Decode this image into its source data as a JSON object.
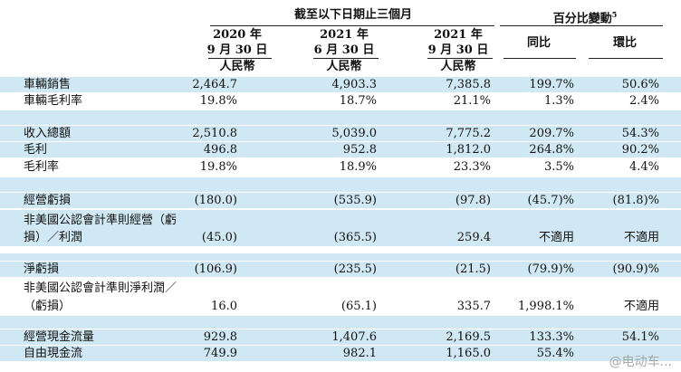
{
  "header": {
    "group_title": "截至以下日期止三個月",
    "pct_title": "百分比變動",
    "pct_footnote": "5",
    "columns": [
      {
        "line1": "2020 年",
        "line2": "9 月 30 日",
        "unit": "人民幣"
      },
      {
        "line1": "2021 年",
        "line2": "6 月 30 日",
        "unit": "人民幣"
      },
      {
        "line1": "2021 年",
        "line2": "9 月 30 日",
        "unit": "人民幣"
      },
      {
        "line1": "同比"
      },
      {
        "line1": "環比"
      }
    ]
  },
  "rows": [
    {
      "label": "車輛銷售",
      "values": [
        "2,464.7",
        "4,903.3",
        "7,385.8",
        "199.7%",
        "50.6%"
      ]
    },
    {
      "label": "車輛毛利率",
      "values": [
        "19.8%",
        "18.7%",
        "21.1%",
        "1.3%",
        "2.4%"
      ]
    },
    {
      "label": "收入總額",
      "values": [
        "2,510.8",
        "5,039.0",
        "7,775.2",
        "209.7%",
        "54.3%"
      ]
    },
    {
      "label": "毛利",
      "values": [
        "496.8",
        "952.8",
        "1,812.0",
        "264.8%",
        "90.2%"
      ]
    },
    {
      "label": "毛利率",
      "values": [
        "19.8%",
        "18.9%",
        "23.3%",
        "3.5%",
        "4.4%"
      ]
    },
    {
      "label": "經營虧損",
      "values": [
        "(180.0)",
        "(535.9)",
        "(97.8)",
        "(45.7)%",
        "(81.8)%"
      ]
    },
    {
      "label": "非美國公認會計準則經營（虧",
      "label2": "損）／利潤",
      "values": [
        "(45.0)",
        "(365.5)",
        "259.4",
        "不適用",
        "不適用"
      ]
    },
    {
      "label": "淨虧損",
      "values": [
        "(106.9)",
        "(235.5)",
        "(21.5)",
        "(79.9)%",
        "(90.9)%"
      ]
    },
    {
      "label": "非美國公認會計準則淨利潤／",
      "label2": "（虧損）",
      "values": [
        "16.0",
        "(65.1)",
        "335.7",
        "1,998.1%",
        "不適用"
      ]
    },
    {
      "label": "經營現金流量",
      "values": [
        "929.8",
        "1,407.6",
        "2,169.5",
        "133.3%",
        "54.1%"
      ]
    },
    {
      "label": "自由現金流",
      "values": [
        "749.9",
        "982.1",
        "1,165.0",
        "55.4%",
        ""
      ]
    }
  ],
  "watermark": "@电动车..."
}
